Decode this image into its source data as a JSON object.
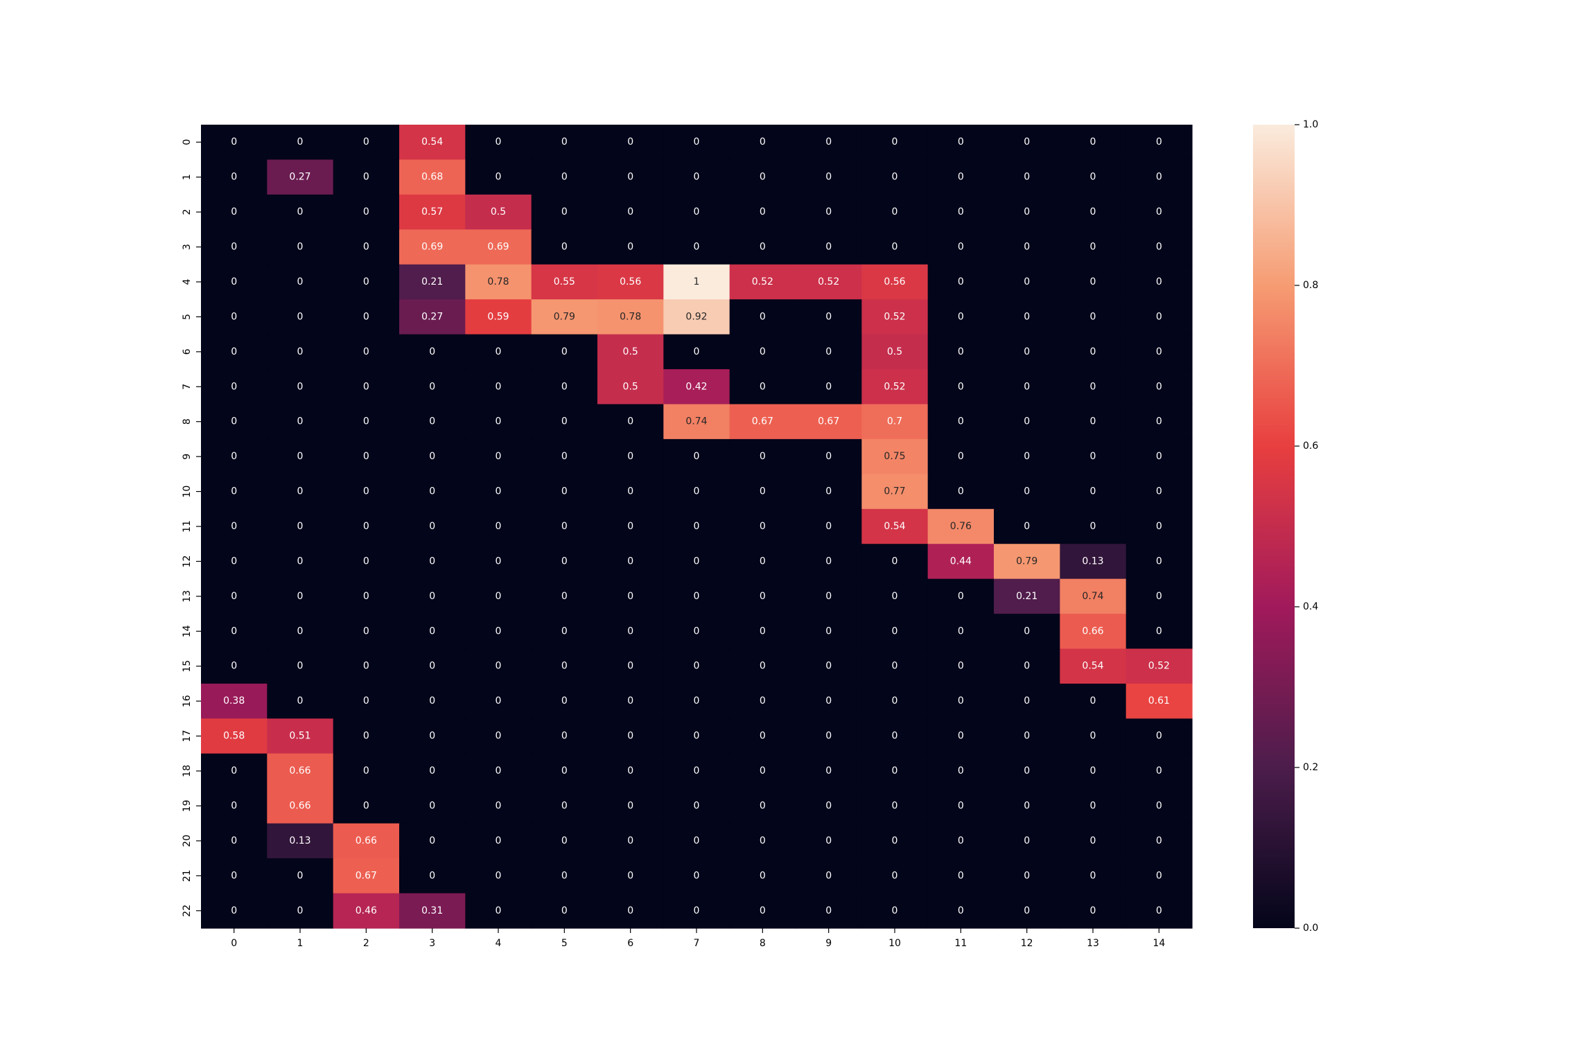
{
  "chart_data": {
    "type": "heatmap",
    "title": "",
    "xlabel": "",
    "ylabel": "",
    "x_ticks": [
      "0",
      "1",
      "2",
      "3",
      "4",
      "5",
      "6",
      "7",
      "8",
      "9",
      "10",
      "11",
      "12",
      "13",
      "14"
    ],
    "y_ticks": [
      "0",
      "1",
      "2",
      "3",
      "4",
      "5",
      "6",
      "7",
      "8",
      "9",
      "10",
      "11",
      "12",
      "13",
      "14",
      "15",
      "16",
      "17",
      "18",
      "19",
      "20",
      "21",
      "22"
    ],
    "values": [
      [
        0,
        0,
        0,
        0.54,
        0,
        0,
        0,
        0,
        0,
        0,
        0,
        0,
        0,
        0,
        0
      ],
      [
        0,
        0.27,
        0,
        0.68,
        0,
        0,
        0,
        0,
        0,
        0,
        0,
        0,
        0,
        0,
        0
      ],
      [
        0,
        0,
        0,
        0.57,
        0.5,
        0,
        0,
        0,
        0,
        0,
        0,
        0,
        0,
        0,
        0
      ],
      [
        0,
        0,
        0,
        0.69,
        0.69,
        0,
        0,
        0,
        0,
        0,
        0,
        0,
        0,
        0,
        0
      ],
      [
        0,
        0,
        0,
        0.21,
        0.78,
        0.55,
        0.56,
        1,
        0.52,
        0.52,
        0.56,
        0,
        0,
        0,
        0
      ],
      [
        0,
        0,
        0,
        0.27,
        0.59,
        0.79,
        0.78,
        0.92,
        0,
        0,
        0.52,
        0,
        0,
        0,
        0
      ],
      [
        0,
        0,
        0,
        0,
        0,
        0,
        0.5,
        0,
        0,
        0,
        0.5,
        0,
        0,
        0,
        0
      ],
      [
        0,
        0,
        0,
        0,
        0,
        0,
        0.5,
        0.42,
        0,
        0,
        0.52,
        0,
        0,
        0,
        0
      ],
      [
        0,
        0,
        0,
        0,
        0,
        0,
        0,
        0.74,
        0.67,
        0.67,
        0.7,
        0,
        0,
        0,
        0
      ],
      [
        0,
        0,
        0,
        0,
        0,
        0,
        0,
        0,
        0,
        0,
        0.75,
        0,
        0,
        0,
        0
      ],
      [
        0,
        0,
        0,
        0,
        0,
        0,
        0,
        0,
        0,
        0,
        0.77,
        0,
        0,
        0,
        0
      ],
      [
        0,
        0,
        0,
        0,
        0,
        0,
        0,
        0,
        0,
        0,
        0.54,
        0.76,
        0,
        0,
        0
      ],
      [
        0,
        0,
        0,
        0,
        0,
        0,
        0,
        0,
        0,
        0,
        0,
        0.44,
        0.79,
        0.13,
        0
      ],
      [
        0,
        0,
        0,
        0,
        0,
        0,
        0,
        0,
        0,
        0,
        0,
        0,
        0.21,
        0.74,
        0
      ],
      [
        0,
        0,
        0,
        0,
        0,
        0,
        0,
        0,
        0,
        0,
        0,
        0,
        0,
        0.66,
        0
      ],
      [
        0,
        0,
        0,
        0,
        0,
        0,
        0,
        0,
        0,
        0,
        0,
        0,
        0,
        0.54,
        0.52
      ],
      [
        0.38,
        0,
        0,
        0,
        0,
        0,
        0,
        0,
        0,
        0,
        0,
        0,
        0,
        0,
        0.61
      ],
      [
        0.58,
        0.51,
        0,
        0,
        0,
        0,
        0,
        0,
        0,
        0,
        0,
        0,
        0,
        0,
        0
      ],
      [
        0,
        0.66,
        0,
        0,
        0,
        0,
        0,
        0,
        0,
        0,
        0,
        0,
        0,
        0,
        0
      ],
      [
        0,
        0.66,
        0,
        0,
        0,
        0,
        0,
        0,
        0,
        0,
        0,
        0,
        0,
        0,
        0
      ],
      [
        0,
        0.13,
        0.66,
        0,
        0,
        0,
        0,
        0,
        0,
        0,
        0,
        0,
        0,
        0,
        0
      ],
      [
        0,
        0,
        0.67,
        0,
        0,
        0,
        0,
        0,
        0,
        0,
        0,
        0,
        0,
        0,
        0
      ],
      [
        0,
        0,
        0.46,
        0.31,
        0,
        0,
        0,
        0,
        0,
        0,
        0,
        0,
        0,
        0,
        0
      ]
    ],
    "vmin": 0,
    "vmax": 1,
    "annotate": true,
    "grid": false,
    "colormap": "rocket",
    "colormap_stops": [
      "#03051a",
      "#4c1d4b",
      "#a11a5b",
      "#e83f3f",
      "#f69c73",
      "#faebdd"
    ],
    "colorbar": {
      "placement": "right",
      "ticks": [
        "0.0",
        "0.2",
        "0.4",
        "0.6",
        "0.8",
        "1.0"
      ]
    }
  }
}
